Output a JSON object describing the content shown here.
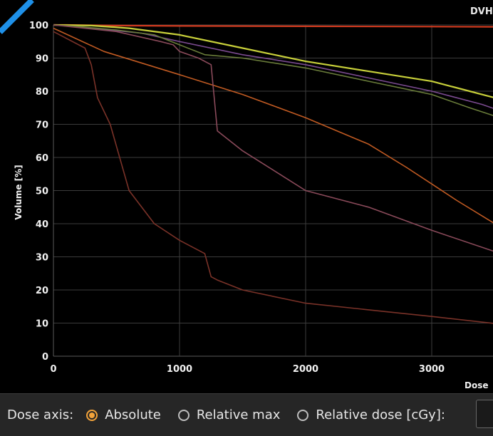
{
  "chart_data": {
    "type": "line",
    "title": "DVH",
    "xlabel": "Dose",
    "ylabel": "Volume [%]",
    "xlim": [
      0,
      3700
    ],
    "ylim": [
      0,
      100
    ],
    "x_ticks": [
      0,
      1000,
      2000,
      3000
    ],
    "y_ticks": [
      0,
      10,
      20,
      30,
      40,
      50,
      60,
      70,
      80,
      90,
      100
    ],
    "grid": true,
    "series": [
      {
        "color": "#d23a1e",
        "x": [
          0,
          100,
          500,
          1000,
          2000,
          3000,
          3700
        ],
        "y": [
          100,
          100,
          99.8,
          99.7,
          99.6,
          99.5,
          99.4
        ]
      },
      {
        "color": "#c7cf3a",
        "x": [
          0,
          300,
          600,
          1000,
          1500,
          2000,
          2500,
          3000,
          3300,
          3500,
          3700
        ],
        "y": [
          100,
          99.8,
          99,
          97,
          93,
          89,
          86,
          83,
          80,
          78,
          75
        ]
      },
      {
        "color": "#7a4a8f",
        "x": [
          0,
          300,
          700,
          1000,
          1500,
          2000,
          2500,
          3000,
          3400,
          3700
        ],
        "y": [
          100,
          99,
          97.5,
          95,
          91,
          88,
          84,
          80,
          76,
          72
        ]
      },
      {
        "color": "#6a7d3a",
        "x": [
          0,
          200,
          500,
          800,
          1000,
          1200,
          1500,
          2000,
          2500,
          3000,
          3300,
          3700
        ],
        "y": [
          100,
          99.5,
          98.5,
          97,
          94,
          91,
          90,
          87,
          83,
          79,
          75,
          70
        ]
      },
      {
        "color": "#c05a22",
        "x": [
          0,
          400,
          1000,
          1500,
          2000,
          2500,
          2800,
          3000,
          3200,
          3500,
          3700
        ],
        "y": [
          99,
          92,
          85,
          79,
          72,
          64,
          57,
          52,
          47,
          40,
          35
        ]
      },
      {
        "color": "#8a4a5a",
        "x": [
          0,
          500,
          850,
          950,
          1000,
          1150,
          1250,
          1300,
          1500,
          2000,
          2500,
          3000,
          3700
        ],
        "y": [
          100,
          98,
          95,
          94,
          92,
          90,
          88,
          68,
          62,
          50,
          45,
          38,
          29
        ]
      },
      {
        "color": "#7a3228",
        "x": [
          0,
          250,
          300,
          350,
          400,
          450,
          600,
          800,
          1000,
          1200,
          1250,
          1300,
          1500,
          2000,
          2500,
          3000,
          3700
        ],
        "y": [
          98,
          93,
          88,
          78,
          74,
          70,
          50,
          40,
          35,
          31,
          24,
          23,
          20,
          16,
          14,
          12,
          9
        ]
      }
    ]
  },
  "controls": {
    "label": "Dose axis:",
    "options": [
      {
        "label": "Absolute",
        "checked": true
      },
      {
        "label": "Relative max",
        "checked": false
      },
      {
        "label": "Relative dose [cGy]:",
        "checked": false
      }
    ],
    "accent": "#f3a33a"
  }
}
